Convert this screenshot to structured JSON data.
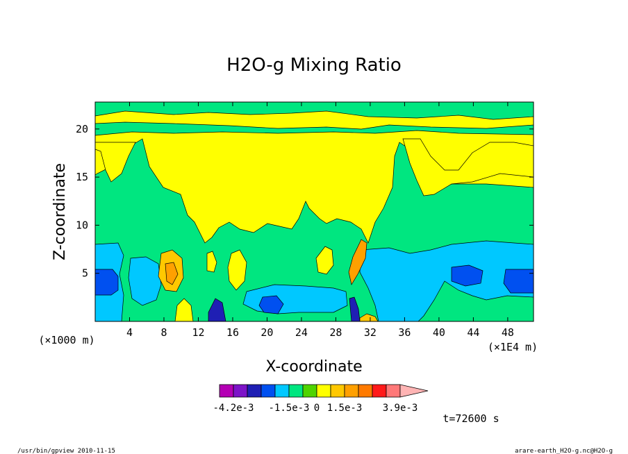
{
  "chart_data": {
    "type": "heatmap",
    "title": "H2O-g Mixing Ratio",
    "xlabel": "X-coordinate",
    "ylabel": "Z-coordinate",
    "x_unit_left": "(×1000 m)",
    "x_unit_right": "(×1E4 m)",
    "x_ticks": [
      4,
      8,
      12,
      16,
      20,
      24,
      28,
      32,
      36,
      40,
      44,
      48
    ],
    "x_tick_labels": [
      "4",
      "8",
      "12",
      "16",
      "20",
      "24",
      "28",
      "32",
      "36",
      "40",
      "44",
      "48"
    ],
    "y_ticks": [
      5,
      10,
      15,
      20
    ],
    "y_tick_labels": [
      "5",
      "10",
      "15",
      "20"
    ],
    "xlim": [
      0,
      51
    ],
    "ylim": [
      0,
      22.8
    ],
    "colorbar": {
      "levels": [
        "-4.2e-3",
        "-1.5e-3",
        "0",
        "1.5e-3",
        "3.9e-3"
      ],
      "colors": [
        "#b400b4",
        "#7d14c8",
        "#1f1fb4",
        "#0050f0",
        "#00c8ff",
        "#00e680",
        "#4fd400",
        "#ffff00",
        "#ffc800",
        "#ffa000",
        "#ff7a00",
        "#ff1a1a",
        "#ff7878",
        "#ffb4b4"
      ]
    },
    "time_label": "t=72600 s",
    "footer_left": "/usr/bin/gpview  2010-11-15",
    "footer_right": "arare-earth_H2O-g.nc@H2O-g"
  }
}
